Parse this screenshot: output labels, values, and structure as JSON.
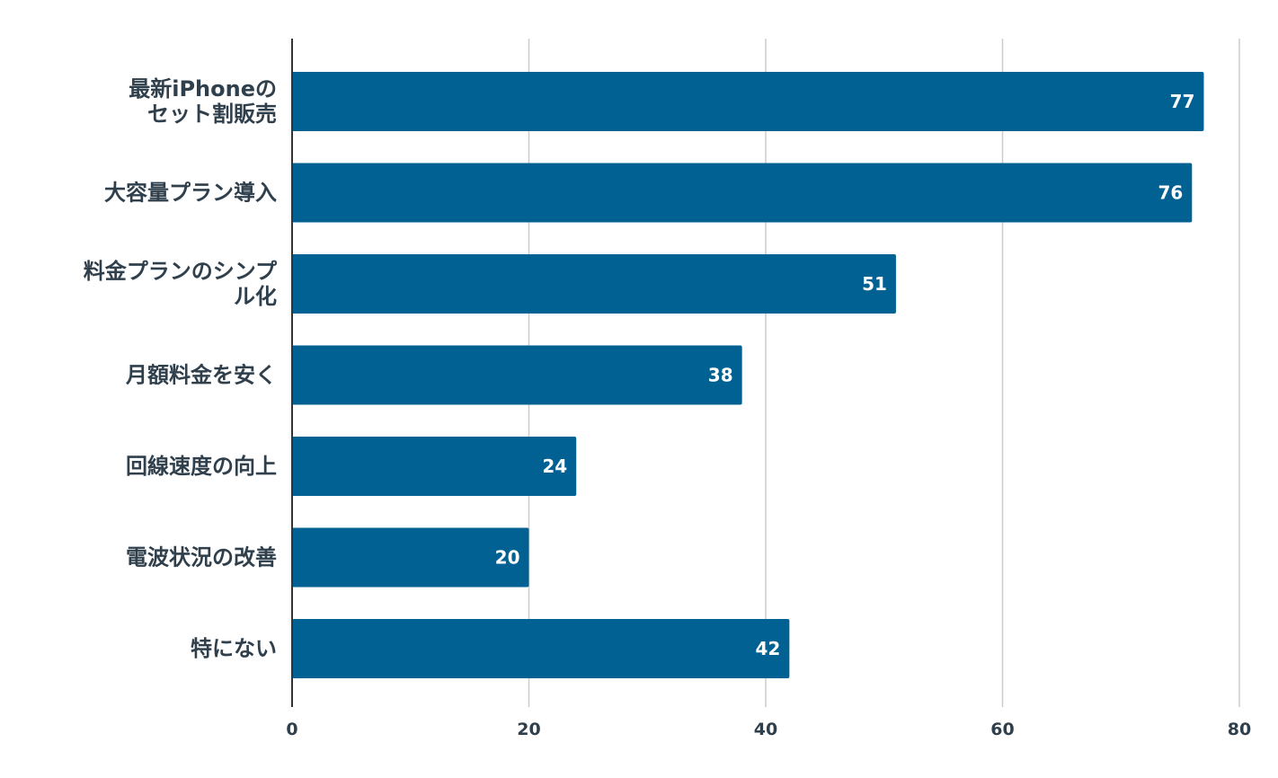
{
  "chart_data": {
    "type": "bar",
    "orientation": "horizontal",
    "categories": [
      [
        "最新iPhoneの",
        "セット割販売"
      ],
      [
        "大容量プラン導入"
      ],
      [
        "料金プランのシンプ",
        "ル化"
      ],
      [
        "月額料金を安く"
      ],
      [
        "回線速度の向上"
      ],
      [
        "電波状況の改善"
      ],
      [
        "特にない"
      ]
    ],
    "values": [
      77,
      76,
      51,
      38,
      24,
      20,
      42
    ],
    "xlim": [
      0,
      80
    ],
    "xticks": [
      0,
      20,
      40,
      60,
      80
    ],
    "title": "",
    "xlabel": "",
    "ylabel": "",
    "grid": "vertical",
    "data_labels": "inside-end",
    "colors": {
      "bar": "#006192",
      "grid": "#cccccc",
      "axis": "#333333",
      "text": "#2f3f4c",
      "value_text": "#ffffff"
    }
  }
}
